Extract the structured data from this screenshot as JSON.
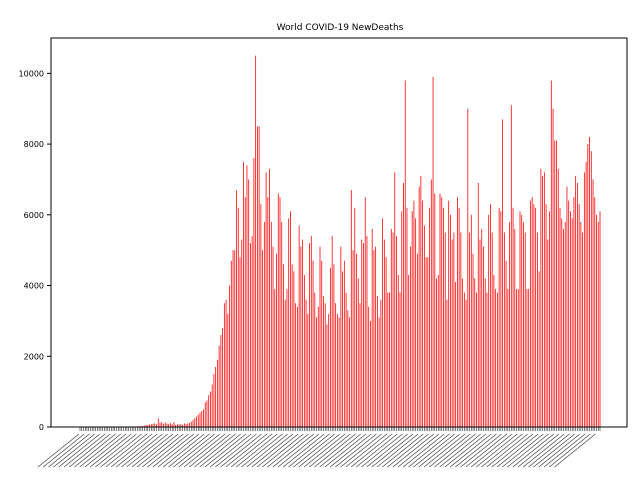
{
  "chart_data": {
    "type": "bar",
    "title": "World COVID-19 NewDeaths",
    "xlabel": "",
    "ylabel": "",
    "ylim": [
      0,
      11000
    ],
    "yticks": [
      0,
      2000,
      4000,
      6000,
      8000,
      10000
    ],
    "bar_color": "#ff0000",
    "grid": false,
    "legend": "none",
    "x_tick_labels_legible": false,
    "num_bars": 300,
    "values": [
      0,
      0,
      0,
      0,
      0,
      0,
      0,
      0,
      0,
      0,
      0,
      0,
      0,
      0,
      0,
      0,
      0,
      0,
      0,
      0,
      0,
      0,
      0,
      0,
      0,
      0,
      1,
      2,
      3,
      5,
      8,
      10,
      12,
      15,
      20,
      25,
      30,
      40,
      50,
      60,
      70,
      80,
      90,
      100,
      80,
      250,
      120,
      140,
      90,
      130,
      100,
      90,
      110,
      80,
      140,
      60,
      80,
      70,
      90,
      60,
      100,
      80,
      100,
      120,
      150,
      200,
      250,
      300,
      350,
      400,
      450,
      500,
      700,
      750,
      900,
      1000,
      1200,
      1500,
      1700,
      1900,
      2300,
      2600,
      2800,
      3500,
      3600,
      3200,
      4000,
      4700,
      5000,
      5000,
      6700,
      6200,
      4800,
      5300,
      7500,
      6500,
      7400,
      7000,
      5200,
      5400,
      7600,
      10500,
      8500,
      8500,
      6300,
      5000,
      5800,
      7200,
      6500,
      7300,
      5800,
      5100,
      3900,
      4900,
      6600,
      6500,
      5800,
      4600,
      3600,
      3900,
      5900,
      6100,
      4600,
      4400,
      3500,
      3400,
      5700,
      5100,
      5300,
      4300,
      3600,
      3200,
      5200,
      5400,
      4700,
      3800,
      3100,
      3400,
      5100,
      4700,
      3700,
      3500,
      2900,
      3200,
      4500,
      5400,
      4600,
      3500,
      3200,
      3100,
      5100,
      4400,
      4700,
      3800,
      3300,
      3100,
      6700,
      5000,
      6200,
      4900,
      4200,
      3500,
      5300,
      5200,
      6500,
      5400,
      3400,
      3000,
      5600,
      5000,
      5100,
      3700,
      3100,
      3600,
      5900,
      5300,
      4800,
      3800,
      3800,
      5600,
      5500,
      7200,
      5400,
      4300,
      3800,
      6100,
      6900,
      9800,
      6200,
      4300,
      5100,
      6100,
      6400,
      5900,
      4900,
      6800,
      7100,
      6400,
      5700,
      4800,
      4800,
      6200,
      7000,
      9900,
      6600,
      4200,
      4300,
      6600,
      6500,
      6200,
      5500,
      3600,
      6400,
      6000,
      5300,
      5500,
      4100,
      6500,
      6200,
      5500,
      4200,
      3800,
      3600,
      9000,
      5500,
      6000,
      4900,
      4200,
      3800,
      6900,
      5300,
      5600,
      5100,
      4200,
      3800,
      6000,
      6300,
      5500,
      4300,
      3900,
      3800,
      6200,
      6100,
      8700,
      5500,
      4700,
      3900,
      5800,
      9100,
      6200,
      5600,
      3900,
      3900,
      6100,
      6000,
      5800,
      5500,
      3900,
      3900,
      6400,
      6500,
      6300,
      6200,
      5500,
      4400,
      7300,
      7100,
      7200,
      6300,
      5300,
      6100,
      9800,
      9000,
      8100,
      8100,
      7300,
      6200,
      5900,
      5600,
      5800,
      6800,
      6400,
      6100,
      5900,
      6500,
      7100,
      6900,
      6300,
      5800,
      5500,
      7200,
      7500,
      8000,
      8200,
      7800,
      7000,
      6500,
      6000,
      5800,
      6100
    ]
  }
}
